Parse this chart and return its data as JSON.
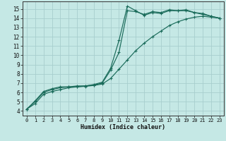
{
  "xlabel": "Humidex (Indice chaleur)",
  "xlim": [
    -0.5,
    23.5
  ],
  "ylim": [
    3.5,
    15.8
  ],
  "xticks": [
    0,
    1,
    2,
    3,
    4,
    5,
    6,
    7,
    8,
    9,
    10,
    11,
    12,
    13,
    14,
    15,
    16,
    17,
    18,
    19,
    20,
    21,
    22,
    23
  ],
  "yticks": [
    4,
    5,
    6,
    7,
    8,
    9,
    10,
    11,
    12,
    13,
    14,
    15
  ],
  "bg_color": "#c5e8e5",
  "line_color": "#1a6b5a",
  "grid_color": "#a8cece",
  "line1_x": [
    0,
    1,
    2,
    3,
    4,
    5,
    6,
    7,
    8,
    9,
    10,
    11,
    12,
    13,
    14,
    15,
    16,
    17,
    18,
    19,
    20,
    21,
    22,
    23
  ],
  "line1_y": [
    4.2,
    5.1,
    6.1,
    6.4,
    6.6,
    6.6,
    6.7,
    6.7,
    6.85,
    7.1,
    8.6,
    11.6,
    15.3,
    14.8,
    14.3,
    14.6,
    14.5,
    14.8,
    14.8,
    14.8,
    14.6,
    14.4,
    14.2,
    14.0
  ],
  "line2_x": [
    0,
    1,
    2,
    3,
    4,
    5,
    6,
    7,
    8,
    9,
    10,
    11,
    12,
    13,
    14,
    15,
    16,
    17,
    18,
    19,
    20,
    21,
    22,
    23
  ],
  "line2_y": [
    4.2,
    5.0,
    6.0,
    6.3,
    6.5,
    6.6,
    6.6,
    6.7,
    6.8,
    7.0,
    8.4,
    10.3,
    14.8,
    14.7,
    14.4,
    14.7,
    14.6,
    14.9,
    14.8,
    14.9,
    14.6,
    14.5,
    14.2,
    14.0
  ],
  "line3_x": [
    0,
    1,
    2,
    3,
    4,
    5,
    6,
    7,
    8,
    9,
    10,
    11,
    12,
    13,
    14,
    15,
    16,
    17,
    18,
    19,
    20,
    21,
    22,
    23
  ],
  "line3_y": [
    4.2,
    4.8,
    5.8,
    6.1,
    6.3,
    6.5,
    6.6,
    6.65,
    6.75,
    6.9,
    7.5,
    8.5,
    9.5,
    10.5,
    11.3,
    12.0,
    12.6,
    13.2,
    13.6,
    13.9,
    14.1,
    14.2,
    14.1,
    14.0
  ]
}
